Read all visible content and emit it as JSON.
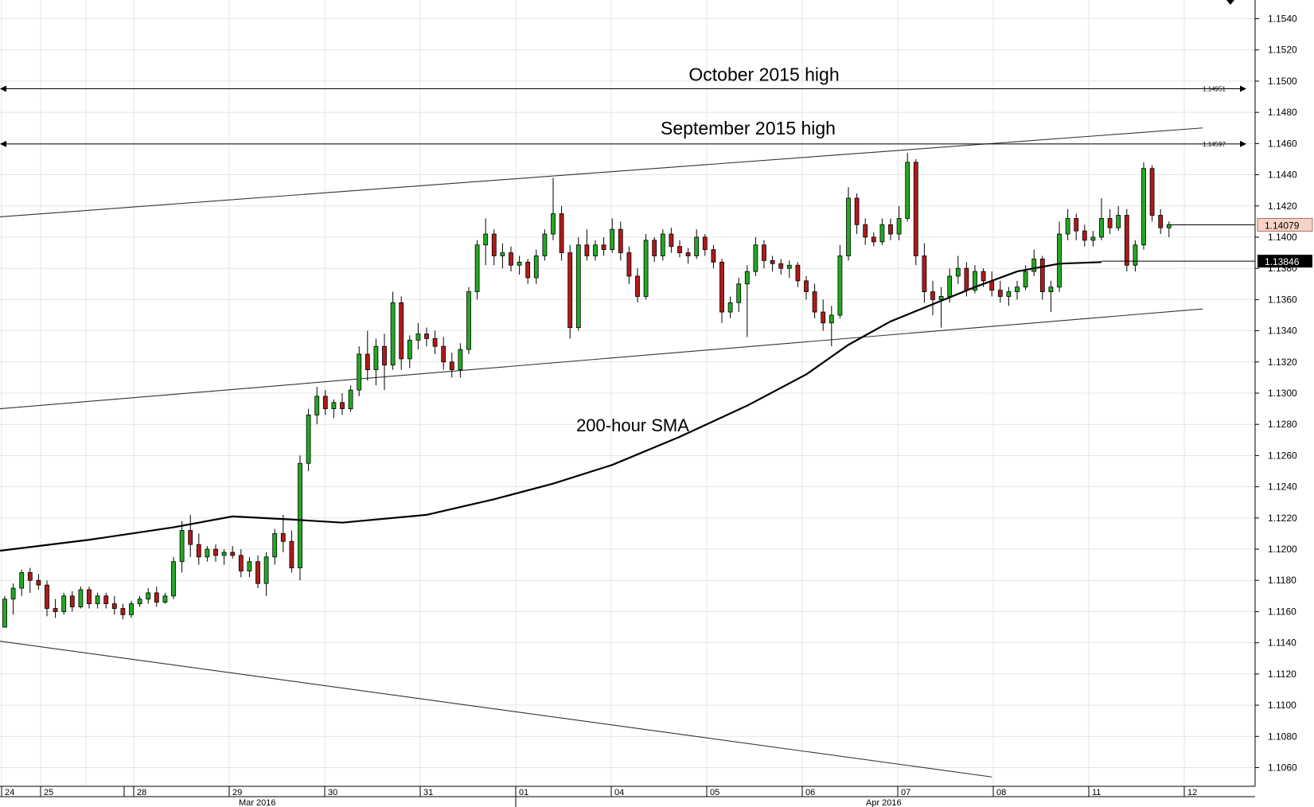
{
  "chart_data": {
    "type": "candlestick",
    "title": "",
    "xlabel": "",
    "ylabel": "",
    "ylim": [
      1.1048,
      1.1552
    ],
    "grid": true,
    "y_ticks": [
      1.106,
      1.108,
      1.11,
      1.112,
      1.114,
      1.116,
      1.118,
      1.12,
      1.122,
      1.124,
      1.126,
      1.128,
      1.13,
      1.132,
      1.134,
      1.136,
      1.138,
      1.14,
      1.142,
      1.144,
      1.146,
      1.148,
      1.15,
      1.152,
      1.154
    ],
    "x_day_labels": [
      "24",
      "25",
      "28",
      "29",
      "30",
      "31",
      "01",
      "04",
      "05",
      "06",
      "07",
      "08",
      "11",
      "12"
    ],
    "x_month_labels": [
      "Mar 2016",
      "Apr 2016"
    ],
    "horizontal_levels": [
      {
        "value": 1.14951,
        "price_label": "1.14951",
        "annotation": "October 2015 high"
      },
      {
        "value": 1.14597,
        "price_label": "1.14597",
        "annotation": "September 2015 high"
      }
    ],
    "channel_lines": [
      {
        "from": [
          0,
          1.1413
        ],
        "to": [
          142,
          1.147
        ]
      },
      {
        "from": [
          0,
          1.129
        ],
        "to": [
          142,
          1.1354
        ]
      },
      {
        "from": [
          0,
          1.1141
        ],
        "to": [
          117,
          1.1054
        ]
      }
    ],
    "sma": {
      "label": "200-hour SMA",
      "current": 1.13846,
      "current_label": "1.13846",
      "points": [
        [
          0,
          1.1199
        ],
        [
          10,
          1.1206
        ],
        [
          20,
          1.1214
        ],
        [
          27,
          1.1221
        ],
        [
          34,
          1.1219
        ],
        [
          40,
          1.1217
        ],
        [
          50,
          1.1222
        ],
        [
          58,
          1.1232
        ],
        [
          65,
          1.1242
        ],
        [
          72,
          1.1254
        ],
        [
          80,
          1.1272
        ],
        [
          88,
          1.1292
        ],
        [
          95,
          1.1312
        ],
        [
          100,
          1.1331
        ],
        [
          105,
          1.1346
        ],
        [
          110,
          1.1357
        ],
        [
          115,
          1.1368
        ],
        [
          120,
          1.1378
        ],
        [
          125,
          1.1383
        ],
        [
          130,
          1.1384
        ]
      ]
    },
    "last_price": 1.14079,
    "last_price_label": "1.14079",
    "ohlc": [
      [
        1.115,
        1.117,
        1.115,
        1.1168
      ],
      [
        1.1168,
        1.1178,
        1.1158,
        1.1175
      ],
      [
        1.1175,
        1.1187,
        1.117,
        1.1185
      ],
      [
        1.1185,
        1.1188,
        1.1172,
        1.118
      ],
      [
        1.118,
        1.1184,
        1.1174,
        1.1177
      ],
      [
        1.1177,
        1.118,
        1.1157,
        1.1162
      ],
      [
        1.1162,
        1.1168,
        1.1156,
        1.116
      ],
      [
        1.116,
        1.1172,
        1.1158,
        1.117
      ],
      [
        1.117,
        1.1173,
        1.116,
        1.1163
      ],
      [
        1.1163,
        1.1176,
        1.1162,
        1.1174
      ],
      [
        1.1174,
        1.1176,
        1.1162,
        1.1165
      ],
      [
        1.1165,
        1.1172,
        1.1162,
        1.117
      ],
      [
        1.117,
        1.1172,
        1.1162,
        1.1165
      ],
      [
        1.1165,
        1.117,
        1.1158,
        1.1162
      ],
      [
        1.1162,
        1.1165,
        1.1155,
        1.1158
      ],
      [
        1.1158,
        1.1167,
        1.1156,
        1.1165
      ],
      [
        1.1165,
        1.117,
        1.1163,
        1.1168
      ],
      [
        1.1168,
        1.1175,
        1.1165,
        1.1172
      ],
      [
        1.1172,
        1.1176,
        1.1163,
        1.1166
      ],
      [
        1.1166,
        1.1172,
        1.1165,
        1.117
      ],
      [
        1.117,
        1.1195,
        1.1168,
        1.1192
      ],
      [
        1.1192,
        1.1218,
        1.1185,
        1.1212
      ],
      [
        1.1212,
        1.1222,
        1.1195,
        1.1203
      ],
      [
        1.1203,
        1.121,
        1.119,
        1.1195
      ],
      [
        1.1195,
        1.1202,
        1.1192,
        1.12
      ],
      [
        1.12,
        1.1203,
        1.1192,
        1.1196
      ],
      [
        1.1196,
        1.12,
        1.119,
        1.1198
      ],
      [
        1.1198,
        1.1202,
        1.1194,
        1.1196
      ],
      [
        1.1196,
        1.12,
        1.1182,
        1.1186
      ],
      [
        1.1186,
        1.1195,
        1.1182,
        1.1192
      ],
      [
        1.1192,
        1.1196,
        1.1175,
        1.1178
      ],
      [
        1.1178,
        1.1198,
        1.117,
        1.1195
      ],
      [
        1.1195,
        1.1213,
        1.119,
        1.121
      ],
      [
        1.121,
        1.1222,
        1.1198,
        1.1205
      ],
      [
        1.1205,
        1.1212,
        1.1185,
        1.1188
      ],
      [
        1.1188,
        1.126,
        1.118,
        1.1255
      ],
      [
        1.1255,
        1.129,
        1.125,
        1.1286
      ],
      [
        1.1286,
        1.1304,
        1.128,
        1.1298
      ],
      [
        1.1298,
        1.1302,
        1.1286,
        1.129
      ],
      [
        1.129,
        1.1296,
        1.1284,
        1.1294
      ],
      [
        1.1294,
        1.13,
        1.1286,
        1.129
      ],
      [
        1.129,
        1.1305,
        1.1288,
        1.1302
      ],
      [
        1.1302,
        1.133,
        1.1298,
        1.1325
      ],
      [
        1.1325,
        1.134,
        1.1308,
        1.1315
      ],
      [
        1.1315,
        1.1335,
        1.1305,
        1.133
      ],
      [
        1.133,
        1.1338,
        1.1302,
        1.1318
      ],
      [
        1.1318,
        1.1365,
        1.1315,
        1.1358
      ],
      [
        1.1358,
        1.1362,
        1.1315,
        1.1322
      ],
      [
        1.1322,
        1.1337,
        1.1316,
        1.1334
      ],
      [
        1.1334,
        1.1345,
        1.1328,
        1.1338
      ],
      [
        1.1338,
        1.1342,
        1.133,
        1.1335
      ],
      [
        1.1335,
        1.134,
        1.1325,
        1.133
      ],
      [
        1.133,
        1.1336,
        1.1315,
        1.132
      ],
      [
        1.132,
        1.1326,
        1.131,
        1.1315
      ],
      [
        1.1315,
        1.1332,
        1.131,
        1.1328
      ],
      [
        1.1328,
        1.1368,
        1.1325,
        1.1365
      ],
      [
        1.1365,
        1.1398,
        1.136,
        1.1395
      ],
      [
        1.1395,
        1.1412,
        1.1382,
        1.1402
      ],
      [
        1.1402,
        1.1405,
        1.1382,
        1.1388
      ],
      [
        1.1388,
        1.1396,
        1.138,
        1.139
      ],
      [
        1.139,
        1.1394,
        1.1378,
        1.1382
      ],
      [
        1.1382,
        1.1388,
        1.1376,
        1.1384
      ],
      [
        1.1384,
        1.1386,
        1.137,
        1.1374
      ],
      [
        1.1374,
        1.1392,
        1.137,
        1.1388
      ],
      [
        1.1388,
        1.1405,
        1.1385,
        1.1402
      ],
      [
        1.1402,
        1.1438,
        1.1398,
        1.1415
      ],
      [
        1.1415,
        1.142,
        1.1385,
        1.139
      ],
      [
        1.139,
        1.1395,
        1.1335,
        1.1342
      ],
      [
        1.1342,
        1.14,
        1.134,
        1.1395
      ],
      [
        1.1395,
        1.1405,
        1.1385,
        1.1388
      ],
      [
        1.1388,
        1.1398,
        1.1385,
        1.1395
      ],
      [
        1.1395,
        1.14,
        1.1388,
        1.1392
      ],
      [
        1.1392,
        1.1412,
        1.139,
        1.1405
      ],
      [
        1.1405,
        1.141,
        1.1385,
        1.139
      ],
      [
        1.139,
        1.1394,
        1.137,
        1.1375
      ],
      [
        1.1375,
        1.138,
        1.1358,
        1.1362
      ],
      [
        1.1362,
        1.1402,
        1.136,
        1.1398
      ],
      [
        1.1398,
        1.14,
        1.1384,
        1.1388
      ],
      [
        1.1388,
        1.1405,
        1.1385,
        1.1402
      ],
      [
        1.1402,
        1.1406,
        1.139,
        1.1394
      ],
      [
        1.1394,
        1.1398,
        1.1387,
        1.139
      ],
      [
        1.139,
        1.1393,
        1.1383,
        1.1388
      ],
      [
        1.1388,
        1.1405,
        1.1386,
        1.14
      ],
      [
        1.14,
        1.1402,
        1.1388,
        1.1392
      ],
      [
        1.1392,
        1.1395,
        1.138,
        1.1384
      ],
      [
        1.1384,
        1.1386,
        1.1345,
        1.1352
      ],
      [
        1.1352,
        1.1362,
        1.1348,
        1.1358
      ],
      [
        1.1358,
        1.1374,
        1.1352,
        1.137
      ],
      [
        1.137,
        1.1382,
        1.1336,
        1.1378
      ],
      [
        1.1378,
        1.14,
        1.1375,
        1.1395
      ],
      [
        1.1395,
        1.1398,
        1.138,
        1.1385
      ],
      [
        1.1385,
        1.1388,
        1.1378,
        1.1383
      ],
      [
        1.1383,
        1.1386,
        1.1376,
        1.138
      ],
      [
        1.138,
        1.1385,
        1.1374,
        1.1382
      ],
      [
        1.1382,
        1.1384,
        1.1368,
        1.1372
      ],
      [
        1.1372,
        1.1375,
        1.136,
        1.1365
      ],
      [
        1.1365,
        1.137,
        1.1348,
        1.1352
      ],
      [
        1.1352,
        1.136,
        1.134,
        1.1345
      ],
      [
        1.1345,
        1.1356,
        1.133,
        1.135
      ],
      [
        1.135,
        1.1395,
        1.1348,
        1.1388
      ],
      [
        1.1388,
        1.1432,
        1.1385,
        1.1425
      ],
      [
        1.1425,
        1.1428,
        1.1402,
        1.1408
      ],
      [
        1.1408,
        1.1412,
        1.1395,
        1.14
      ],
      [
        1.14,
        1.1403,
        1.1394,
        1.1397
      ],
      [
        1.1397,
        1.1412,
        1.1395,
        1.1408
      ],
      [
        1.1408,
        1.1412,
        1.1398,
        1.1402
      ],
      [
        1.1402,
        1.142,
        1.1398,
        1.1412
      ],
      [
        1.1412,
        1.1454,
        1.141,
        1.1448
      ],
      [
        1.1448,
        1.145,
        1.1382,
        1.1388
      ],
      [
        1.1388,
        1.1396,
        1.1358,
        1.1365
      ],
      [
        1.1365,
        1.1372,
        1.135,
        1.136
      ],
      [
        1.136,
        1.1368,
        1.1342,
        1.1362
      ],
      [
        1.1362,
        1.138,
        1.1358,
        1.1375
      ],
      [
        1.1375,
        1.1388,
        1.137,
        1.138
      ],
      [
        1.138,
        1.1384,
        1.1362,
        1.1366
      ],
      [
        1.1366,
        1.1382,
        1.1364,
        1.1378
      ],
      [
        1.1378,
        1.138,
        1.1368,
        1.1372
      ],
      [
        1.1372,
        1.1378,
        1.1362,
        1.1366
      ],
      [
        1.1366,
        1.1372,
        1.1358,
        1.1362
      ],
      [
        1.1362,
        1.1368,
        1.1356,
        1.1365
      ],
      [
        1.1365,
        1.1372,
        1.136,
        1.1368
      ],
      [
        1.1368,
        1.1382,
        1.1366,
        1.1378
      ],
      [
        1.1378,
        1.1392,
        1.1375,
        1.1386
      ],
      [
        1.1386,
        1.1388,
        1.136,
        1.1365
      ],
      [
        1.1365,
        1.1372,
        1.1352,
        1.1368
      ],
      [
        1.1368,
        1.141,
        1.1365,
        1.1402
      ],
      [
        1.1402,
        1.1418,
        1.1398,
        1.1412
      ],
      [
        1.1412,
        1.1415,
        1.1398,
        1.1404
      ],
      [
        1.1404,
        1.1408,
        1.1394,
        1.1398
      ],
      [
        1.1398,
        1.1404,
        1.1394,
        1.14
      ],
      [
        1.14,
        1.1425,
        1.1398,
        1.1412
      ],
      [
        1.1412,
        1.1418,
        1.1402,
        1.1406
      ],
      [
        1.1406,
        1.142,
        1.1404,
        1.1414
      ],
      [
        1.1414,
        1.1418,
        1.1378,
        1.1382
      ],
      [
        1.1382,
        1.1398,
        1.1378,
        1.1395
      ],
      [
        1.1395,
        1.1448,
        1.1392,
        1.1444
      ],
      [
        1.1444,
        1.1446,
        1.141,
        1.1414
      ],
      [
        1.1414,
        1.1418,
        1.1402,
        1.1406
      ],
      [
        1.1406,
        1.141,
        1.14,
        1.1408
      ]
    ]
  }
}
